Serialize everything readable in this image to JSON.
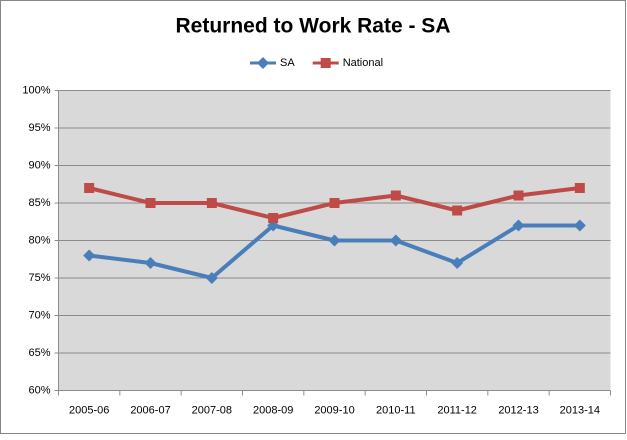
{
  "chart_data": {
    "type": "line",
    "title": "Returned to Work Rate - SA",
    "categories": [
      "2005-06",
      "2006-07",
      "2007-08",
      "2008-09",
      "2009-10",
      "2010-11",
      "2011-12",
      "2012-13",
      "2013-14"
    ],
    "series": [
      {
        "name": "SA",
        "color": "#4a7ebb",
        "marker": "diamond",
        "values": [
          78,
          77,
          75,
          82,
          80,
          80,
          77,
          82,
          82
        ]
      },
      {
        "name": "National",
        "color": "#be4b48",
        "marker": "square",
        "values": [
          87,
          85,
          85,
          83,
          85,
          86,
          84,
          86,
          87
        ]
      }
    ],
    "ylim": [
      60,
      100
    ],
    "yticks": [
      {
        "value": 60,
        "label": "60%"
      },
      {
        "value": 65,
        "label": "65%"
      },
      {
        "value": 70,
        "label": "70%"
      },
      {
        "value": 75,
        "label": "75%"
      },
      {
        "value": 80,
        "label": "80%"
      },
      {
        "value": 85,
        "label": "85%"
      },
      {
        "value": 90,
        "label": "90%"
      },
      {
        "value": 95,
        "label": "95%"
      },
      {
        "value": 100,
        "label": "100%"
      }
    ],
    "grid": true,
    "legend": "top"
  }
}
